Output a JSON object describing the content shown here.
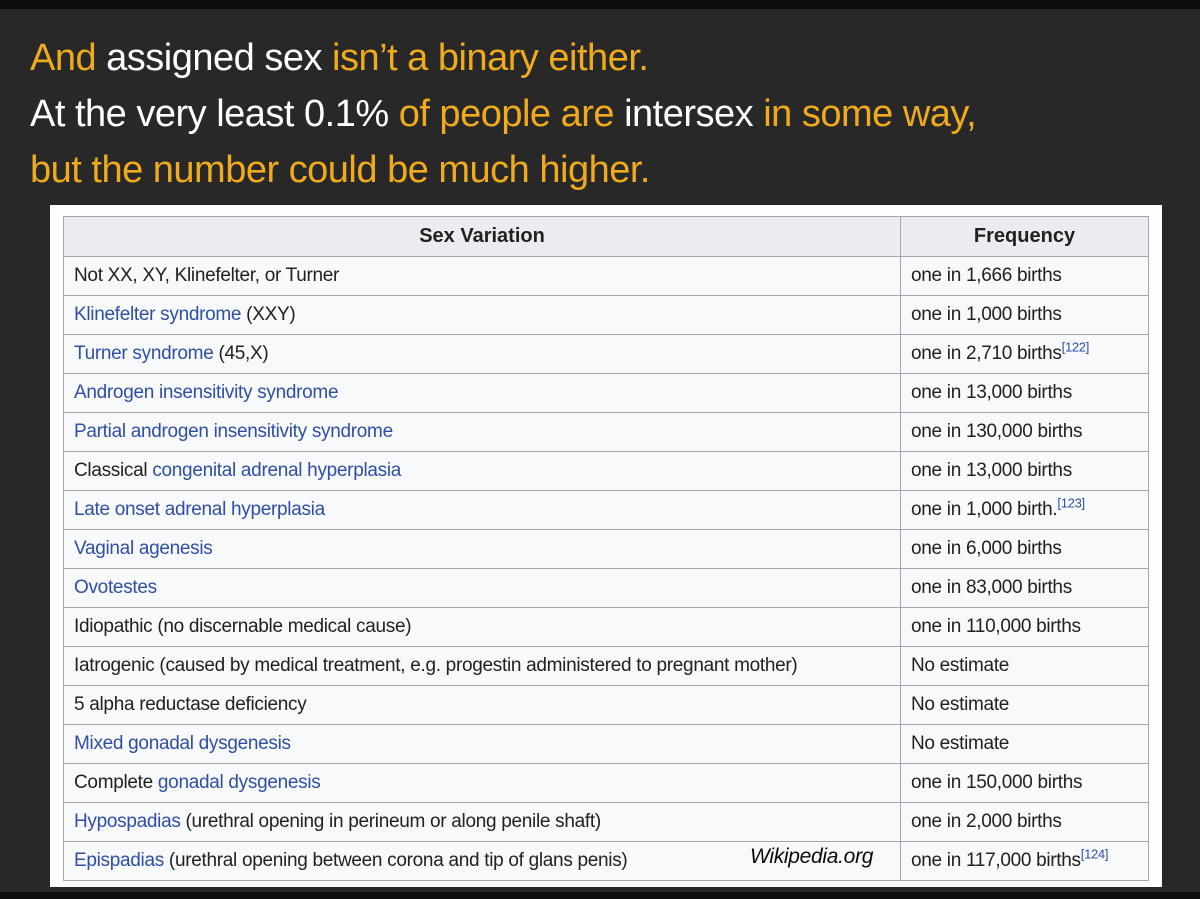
{
  "slide": {
    "background": "#282828",
    "bar_color": "#0d0d0d",
    "heading": {
      "colors": {
        "gold": "#F0AB1C",
        "white": "#FFFFFF"
      },
      "lines": [
        {
          "segments": [
            {
              "text": "And ",
              "color": "gold"
            },
            {
              "text": "assigned sex ",
              "color": "white"
            },
            {
              "text": "isn’t a binary either.",
              "color": "gold"
            }
          ]
        },
        {
          "segments": [
            {
              "text": "At the very least 0.1% ",
              "color": "white"
            },
            {
              "text": "of people are ",
              "color": "gold"
            },
            {
              "text": "intersex ",
              "color": "white"
            },
            {
              "text": "in some way,",
              "color": "gold"
            }
          ]
        },
        {
          "segments": [
            {
              "text": "but the number could be much higher.",
              "color": "gold"
            }
          ]
        }
      ]
    },
    "attribution": "Wikipedia.org"
  },
  "table": {
    "colors": {
      "link": "#2E4FA5",
      "text": "#202122",
      "header_bg": "#EAECF0",
      "row_bg": "#F8F9FA",
      "border": "#A2A9B1"
    },
    "headers": [
      "Sex Variation",
      "Frequency"
    ],
    "rows": [
      {
        "variation": [
          {
            "text": "Not XX, XY, Klinefelter, or Turner",
            "link": false
          }
        ],
        "frequency": "one in 1,666 births",
        "ref": ""
      },
      {
        "variation": [
          {
            "text": "Klinefelter syndrome",
            "link": true
          },
          {
            "text": " (XXY)",
            "link": false
          }
        ],
        "frequency": "one in 1,000 births",
        "ref": ""
      },
      {
        "variation": [
          {
            "text": "Turner syndrome",
            "link": true
          },
          {
            "text": " (45,X)",
            "link": false
          }
        ],
        "frequency": "one in 2,710 births",
        "ref": "[122]"
      },
      {
        "variation": [
          {
            "text": "Androgen insensitivity syndrome",
            "link": true
          }
        ],
        "frequency": "one in 13,000 births",
        "ref": ""
      },
      {
        "variation": [
          {
            "text": "Partial androgen insensitivity syndrome",
            "link": true
          }
        ],
        "frequency": "one in 130,000 births",
        "ref": ""
      },
      {
        "variation": [
          {
            "text": "Classical ",
            "link": false
          },
          {
            "text": "congenital adrenal hyperplasia",
            "link": true
          }
        ],
        "frequency": "one in 13,000 births",
        "ref": ""
      },
      {
        "variation": [
          {
            "text": "Late onset adrenal hyperplasia",
            "link": true
          }
        ],
        "frequency": "one in 1,000 birth.",
        "ref": "[123]"
      },
      {
        "variation": [
          {
            "text": "Vaginal agenesis",
            "link": true
          }
        ],
        "frequency": "one in 6,000 births",
        "ref": ""
      },
      {
        "variation": [
          {
            "text": "Ovotestes",
            "link": true
          }
        ],
        "frequency": "one in 83,000 births",
        "ref": ""
      },
      {
        "variation": [
          {
            "text": "Idiopathic (no discernable medical cause)",
            "link": false
          }
        ],
        "frequency": "one in 110,000 births",
        "ref": ""
      },
      {
        "variation": [
          {
            "text": "Iatrogenic (caused by medical treatment, e.g. progestin administered to pregnant mother)",
            "link": false
          }
        ],
        "frequency": "No estimate",
        "ref": ""
      },
      {
        "variation": [
          {
            "text": "5 alpha reductase deficiency",
            "link": false
          }
        ],
        "frequency": "No estimate",
        "ref": ""
      },
      {
        "variation": [
          {
            "text": "Mixed gonadal dysgenesis",
            "link": true
          }
        ],
        "frequency": "No estimate",
        "ref": ""
      },
      {
        "variation": [
          {
            "text": "Complete ",
            "link": false
          },
          {
            "text": "gonadal dysgenesis",
            "link": true
          }
        ],
        "frequency": "one in 150,000 births",
        "ref": ""
      },
      {
        "variation": [
          {
            "text": "Hypospadias",
            "link": true
          },
          {
            "text": " (urethral opening in perineum or along penile shaft)",
            "link": false
          }
        ],
        "frequency": "one in 2,000 births",
        "ref": ""
      },
      {
        "variation": [
          {
            "text": "Epispadias",
            "link": true
          },
          {
            "text": " (urethral opening between corona and tip of glans penis)",
            "link": false
          }
        ],
        "frequency": "one in 117,000 births",
        "ref": "[124]"
      }
    ]
  }
}
